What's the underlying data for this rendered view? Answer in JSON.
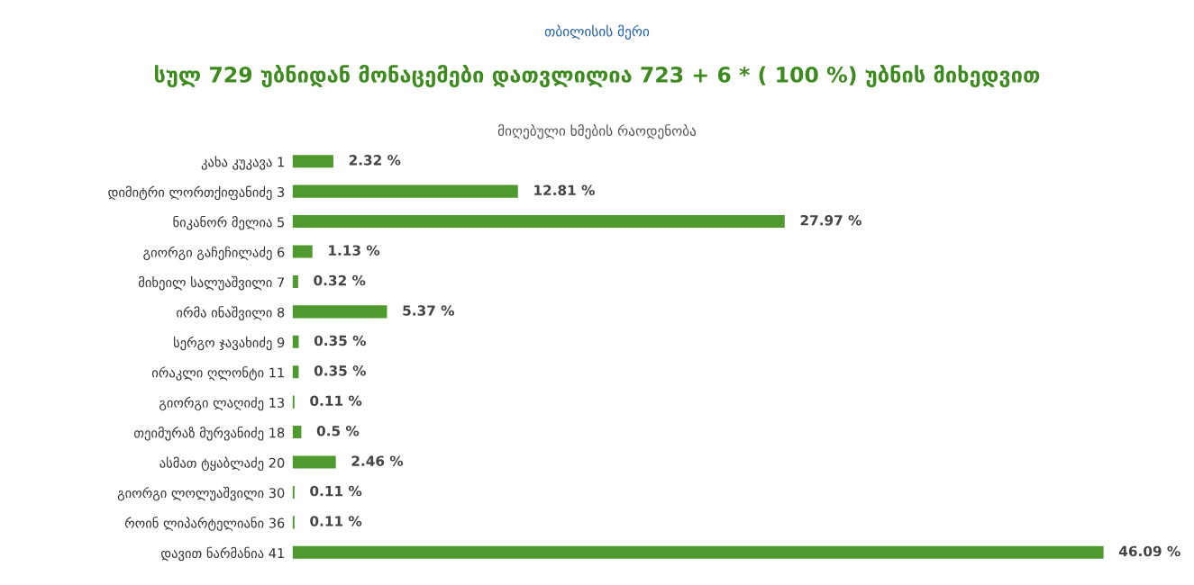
{
  "chart_data": {
    "type": "bar",
    "orientation": "horizontal",
    "title": "თბილისის მერი",
    "subtitle": "სულ 729 უბნიდან მონაცემები დათვლილია 723 + 6 * ( 100 %) უბნის მიხედვით",
    "annotations": [
      "მიღებული ხმების რაოდენობა"
    ],
    "categories": [
      "კახა კუკავა 1",
      "დიმიტრი ლორთქიფანიძე 3",
      "ნიკანორ მელია 5",
      "გიორგი გაჩეჩილაძე 6",
      "მიხეილ სალუაშვილი 7",
      "ირმა ინაშვილი 8",
      "სერგო ჯავახიძე 9",
      "ირაკლი ღლონტი 11",
      "გიორგი ლაღიძე 13",
      "თეიმურაზ მურვანიძე 18",
      "ასმათ ტყაბლაძე 20",
      "გიორგი ლოლუაშვილი 30",
      "როინ ლიპარტელიანი 36",
      "დავით ნარმანია 41"
    ],
    "values": [
      2.32,
      12.81,
      27.97,
      1.13,
      0.32,
      5.37,
      0.35,
      0.35,
      0.11,
      0.5,
      2.46,
      0.11,
      0.11,
      46.09
    ],
    "value_labels": [
      "2.32 %",
      "12.81 %",
      "27.97 %",
      "1.13 %",
      "0.32 %",
      "5.37 %",
      "0.35 %",
      "0.35 %",
      "0.11 %",
      "0.5 %",
      "2.46 %",
      "0.11 %",
      "0.11 %",
      "46.09 %"
    ],
    "color": "#4f9a2e",
    "grid": false,
    "legend": false
  }
}
